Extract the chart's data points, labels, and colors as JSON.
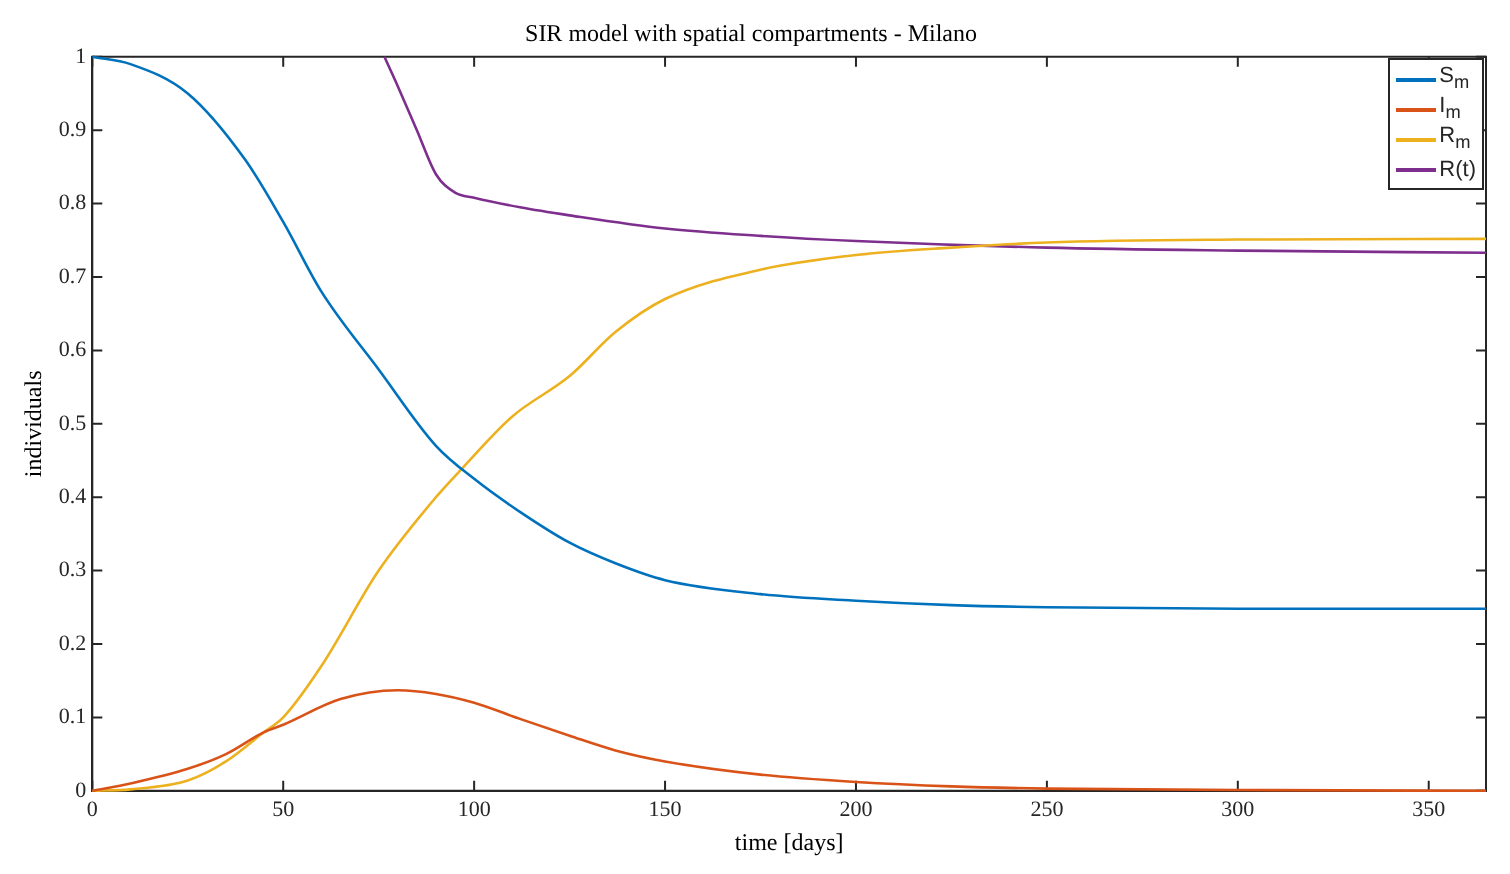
{
  "chart_data": {
    "type": "line",
    "title": "SIR model with spatial compartments - Milano",
    "xlabel": "time [days]",
    "ylabel": "individuals",
    "xlim": [
      0,
      365
    ],
    "xticks": [
      0,
      50,
      100,
      150,
      200,
      250,
      300,
      350
    ],
    "ylim": [
      0,
      1
    ],
    "yticks": [
      0,
      0.1,
      0.2,
      0.3,
      0.4,
      0.5,
      0.6,
      0.7,
      0.8,
      0.9,
      1
    ],
    "grid": false,
    "legend": "top right",
    "marker": "none",
    "line_style": "solid",
    "series": [
      {
        "name": "S$_{m}$",
        "color": "#0072bd",
        "x": [
          0,
          10,
          25,
          40,
          50,
          60,
          75,
          90,
          100,
          112,
          125,
          137,
          150,
          175,
          200,
          225,
          250,
          300,
          365
        ],
        "values": [
          1,
          0.99,
          0.95,
          0.86,
          0.775,
          0.68,
          0.574,
          0.47,
          0.425,
          0.38,
          0.338,
          0.31,
          0.287,
          0.268,
          0.259,
          0.253,
          0.25,
          0.248,
          0.248
        ]
      },
      {
        "name": "I$_{m}$",
        "color": "#d95319",
        "x": [
          0,
          10,
          25,
          35,
          45,
          50,
          65,
          80,
          90,
          100,
          112,
          125,
          137,
          150,
          175,
          200,
          225,
          250,
          300,
          365
        ],
        "values": [
          0,
          0.01,
          0.03,
          0.05,
          0.08,
          0.09,
          0.125,
          0.137,
          0.132,
          0.12,
          0.098,
          0.075,
          0.055,
          0.04,
          0.022,
          0.012,
          0.006,
          0.003,
          0.001,
          0
        ]
      },
      {
        "name": "R$_{m}$",
        "color": "#edb120",
        "x": [
          0,
          10,
          25,
          35,
          45,
          50,
          60,
          75,
          90,
          97,
          110,
          125,
          137,
          150,
          175,
          200,
          225,
          250,
          300,
          365
        ],
        "values": [
          0,
          0.002,
          0.014,
          0.04,
          0.08,
          0.1,
          0.17,
          0.3,
          0.4,
          0.44,
          0.51,
          0.565,
          0.625,
          0.67,
          0.71,
          0.73,
          0.74,
          0.747,
          0.751,
          0.752
        ]
      },
      {
        "name": "R(t)",
        "color": "#7e2f8e",
        "x": [
          76.5,
          80,
          85,
          90,
          95,
          100,
          112,
          125,
          150,
          175,
          200,
          250,
          300,
          365
        ],
        "values": [
          1,
          0.96,
          0.9,
          0.84,
          0.815,
          0.808,
          0.795,
          0.784,
          0.766,
          0.756,
          0.749,
          0.74,
          0.736,
          0.733
        ]
      }
    ]
  }
}
